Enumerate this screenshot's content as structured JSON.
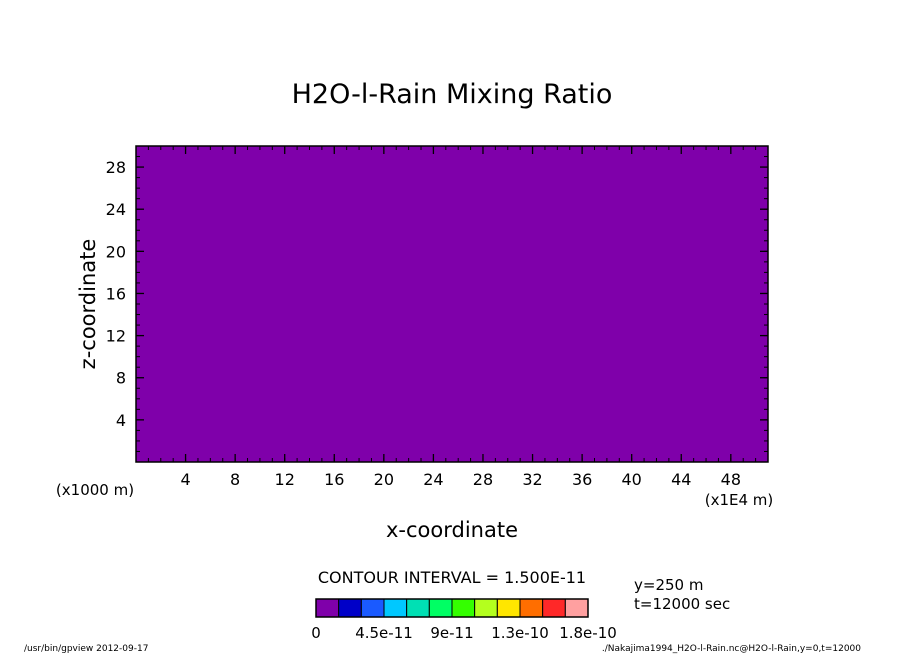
{
  "chart_data": {
    "type": "heatmap",
    "title": "H2O-l-Rain Mixing Ratio",
    "xlabel": "x-coordinate",
    "ylabel": "z-coordinate",
    "x_unit_label": "(x1E4 m)",
    "y_unit_label": "(x1000 m)",
    "xlim": [
      0,
      51
    ],
    "ylim": [
      0,
      30
    ],
    "x_ticks": [
      4,
      8,
      12,
      16,
      20,
      24,
      28,
      32,
      36,
      40,
      44,
      48
    ],
    "y_ticks": [
      4,
      8,
      12,
      16,
      20,
      24,
      28
    ],
    "field_value": 0,
    "fill_color": "#7f00aa",
    "contour_interval": "CONTOUR INTERVAL = 1.500E-11",
    "legend": {
      "colors": [
        "#7f00aa",
        "#0000c8",
        "#1a5aff",
        "#00c8ff",
        "#00e0b4",
        "#00ff64",
        "#34ff00",
        "#b4ff1e",
        "#ffe600",
        "#ff6e00",
        "#ff2828",
        "#ffa0a0"
      ],
      "labels": [
        "0",
        "4.5e-11",
        "9e-11",
        "1.3e-10",
        "1.8e-10"
      ]
    },
    "info_lines": [
      "y=250 m",
      "t=12000 sec"
    ]
  },
  "footer": {
    "left": "/usr/bin/gpview  2012-09-17",
    "right": "./Nakajima1994_H2O-l-Rain.nc@H2O-l-Rain,y=0,t=12000"
  }
}
